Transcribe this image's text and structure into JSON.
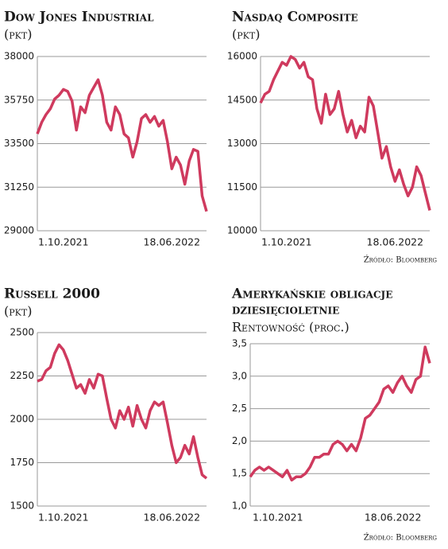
{
  "chart_data": [
    {
      "type": "line",
      "title": "Dow Jones Industrial",
      "subtitle": "(pkt)",
      "categories": [
        null,
        null,
        null,
        null,
        null,
        null,
        "1.10.2021",
        null,
        null,
        null,
        null,
        null,
        null,
        null,
        null,
        null,
        null,
        null,
        null,
        null,
        null,
        null,
        null,
        null,
        null,
        null,
        null,
        null,
        null,
        null,
        null,
        "18.06.2022",
        null,
        null,
        null,
        null,
        null,
        null,
        null,
        null
      ],
      "values": [
        34000,
        34600,
        35000,
        35300,
        35800,
        36000,
        36300,
        36200,
        35700,
        34200,
        35400,
        35100,
        36000,
        36400,
        36800,
        36000,
        34600,
        34200,
        35400,
        35000,
        34000,
        33800,
        32800,
        33600,
        34800,
        35000,
        34600,
        34900,
        34400,
        34700,
        33600,
        32200,
        32800,
        32400,
        31400,
        32600,
        33200,
        33100,
        30800,
        30000
      ],
      "color": "#cf3a5e",
      "ylim": [
        29000,
        38000
      ],
      "yticks": [
        29000,
        31250,
        33500,
        35750,
        38000
      ],
      "grid": true
    },
    {
      "type": "line",
      "title": "Nasdaq Composite",
      "subtitle": "(pkt)",
      "source": "Źródło: Bloomberg",
      "categories": [
        null,
        null,
        null,
        null,
        null,
        null,
        "1.10.2021",
        null,
        null,
        null,
        null,
        null,
        null,
        null,
        null,
        null,
        null,
        null,
        null,
        null,
        null,
        null,
        null,
        null,
        null,
        null,
        null,
        null,
        null,
        null,
        null,
        "18.06.2022",
        null,
        null,
        null,
        null,
        null,
        null,
        null,
        null
      ],
      "values": [
        14400,
        14700,
        14800,
        15200,
        15500,
        15800,
        15700,
        16000,
        15900,
        15600,
        15800,
        15300,
        15200,
        14200,
        13700,
        14700,
        14000,
        14200,
        14800,
        14000,
        13400,
        13800,
        13200,
        13600,
        13400,
        14600,
        14300,
        13400,
        12500,
        12900,
        12200,
        11700,
        12100,
        11600,
        11200,
        11500,
        12200,
        11900,
        11300,
        10700
      ],
      "color": "#cf3a5e",
      "ylim": [
        10000,
        16000
      ],
      "yticks": [
        10000,
        11500,
        13000,
        14500,
        16000
      ],
      "grid": true
    },
    {
      "type": "line",
      "title": "Russell 2000",
      "subtitle": "(pkt)",
      "categories": [
        null,
        null,
        null,
        null,
        null,
        null,
        "1.10.2021",
        null,
        null,
        null,
        null,
        null,
        null,
        null,
        null,
        null,
        null,
        null,
        null,
        null,
        null,
        null,
        null,
        null,
        null,
        null,
        null,
        null,
        null,
        null,
        null,
        "18.06.2022",
        null,
        null,
        null,
        null,
        null,
        null,
        null,
        null
      ],
      "values": [
        2220,
        2230,
        2280,
        2300,
        2380,
        2430,
        2400,
        2340,
        2260,
        2180,
        2200,
        2150,
        2230,
        2180,
        2260,
        2250,
        2120,
        2000,
        1950,
        2050,
        2000,
        2070,
        1960,
        2080,
        2000,
        1950,
        2050,
        2100,
        2080,
        2100,
        1980,
        1850,
        1750,
        1780,
        1850,
        1800,
        1900,
        1780,
        1680,
        1660
      ],
      "color": "#cf3a5e",
      "ylim": [
        1500,
        2500
      ],
      "yticks": [
        1500,
        1750,
        2000,
        2250,
        2500
      ],
      "grid": true
    },
    {
      "type": "line",
      "title": [
        "Amerykańskie obligacje",
        "dziesięcioletnie"
      ],
      "subtitle": "Rentowność (proc.)",
      "source": "Źródło: Bloomberg",
      "categories": [
        null,
        null,
        null,
        null,
        null,
        null,
        "1.10.2021",
        null,
        null,
        null,
        null,
        null,
        null,
        null,
        null,
        null,
        null,
        null,
        null,
        null,
        null,
        null,
        null,
        null,
        null,
        null,
        null,
        null,
        null,
        null,
        null,
        "18.06.2022",
        null,
        null,
        null,
        null,
        null,
        null,
        null,
        null
      ],
      "values": [
        1.45,
        1.55,
        1.6,
        1.55,
        1.6,
        1.55,
        1.5,
        1.45,
        1.55,
        1.4,
        1.45,
        1.45,
        1.5,
        1.6,
        1.75,
        1.75,
        1.8,
        1.8,
        1.95,
        2.0,
        1.95,
        1.85,
        1.95,
        1.85,
        2.05,
        2.35,
        2.4,
        2.5,
        2.6,
        2.8,
        2.85,
        2.75,
        2.9,
        3.0,
        2.85,
        2.75,
        2.95,
        3.0,
        3.45,
        3.2
      ],
      "color": "#cf3a5e",
      "ylim": [
        1.0,
        3.5
      ],
      "yticks": [
        {
          "value": 1.0,
          "label": "1,0"
        },
        {
          "value": 1.5,
          "label": "1,5"
        },
        {
          "value": 2.0,
          "label": "2,0"
        },
        {
          "value": 2.5,
          "label": "2,5"
        },
        {
          "value": 3.0,
          "label": "3,0"
        },
        {
          "value": 3.5,
          "label": "3,5"
        }
      ],
      "grid": true
    }
  ]
}
